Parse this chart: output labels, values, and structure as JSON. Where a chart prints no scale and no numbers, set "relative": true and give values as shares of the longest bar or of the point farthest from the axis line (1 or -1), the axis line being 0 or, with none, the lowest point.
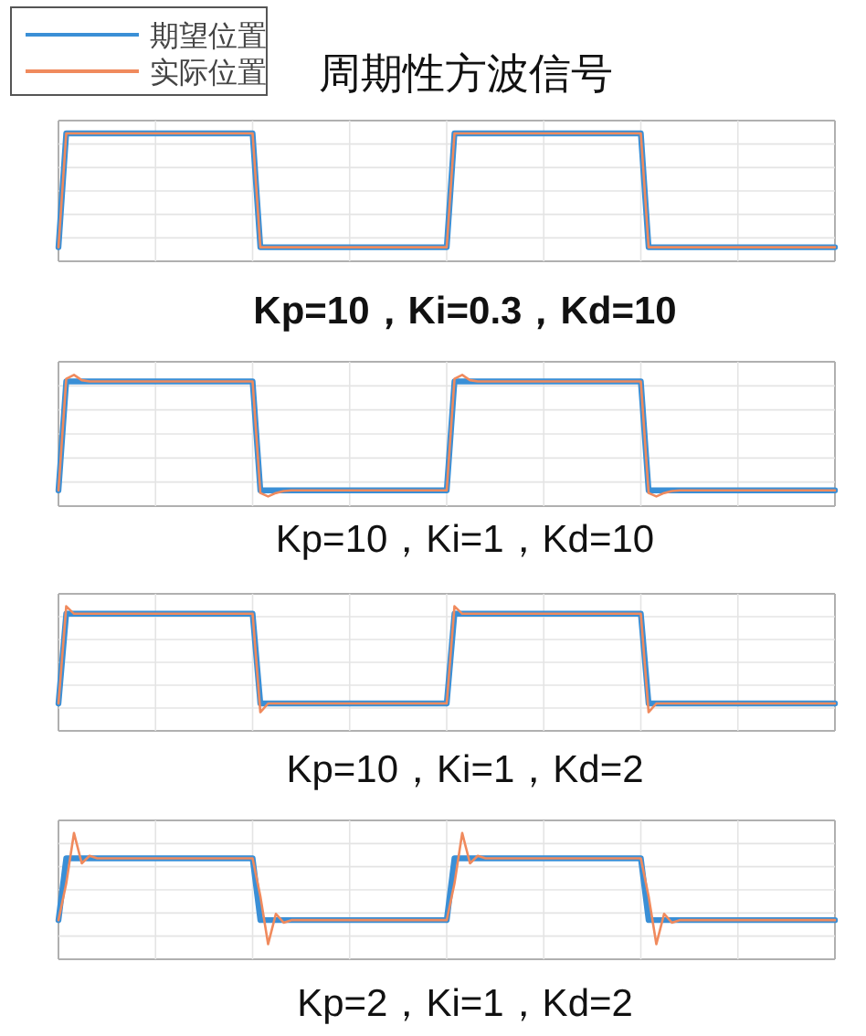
{
  "chart_data": [
    {
      "type": "line",
      "relative": true,
      "title": "周期性方波信号",
      "xlabel": "Kp=10，Ki=0.3，Kd=10",
      "grid": true,
      "legend": "top left",
      "categories": [
        null,
        null,
        null,
        null,
        null,
        null,
        null,
        null,
        null,
        null,
        null,
        null,
        null,
        null,
        null,
        null,
        null,
        null,
        null,
        null,
        null,
        null,
        null,
        null,
        null,
        null,
        null,
        null,
        null,
        null,
        null,
        null,
        null,
        null,
        null,
        null,
        null,
        null,
        null,
        null,
        null,
        null,
        null,
        null,
        null,
        null,
        null,
        null,
        null,
        null,
        null,
        null,
        null,
        null,
        null,
        null,
        null,
        null,
        null,
        null,
        null,
        null,
        null,
        null,
        null,
        null,
        null,
        null,
        null,
        null,
        null,
        null,
        null,
        null,
        null,
        null,
        null,
        null,
        null,
        null,
        null,
        null,
        null,
        null,
        null,
        null,
        null,
        null,
        null,
        null,
        null,
        null,
        null,
        null,
        null,
        null,
        null,
        null,
        null,
        null,
        null
      ],
      "series": [
        {
          "name": "期望位置",
          "color": "#3a8fd6",
          "values": [
            0.11,
            1,
            1,
            1,
            1,
            1,
            1,
            1,
            1,
            1,
            1,
            1,
            1,
            1,
            1,
            1,
            1,
            1,
            1,
            1,
            1,
            1,
            1,
            1,
            1,
            1,
            0.11,
            0.11,
            0.11,
            0.11,
            0.11,
            0.11,
            0.11,
            0.11,
            0.11,
            0.11,
            0.11,
            0.11,
            0.11,
            0.11,
            0.11,
            0.11,
            0.11,
            0.11,
            0.11,
            0.11,
            0.11,
            0.11,
            0.11,
            0.11,
            0.11,
            1,
            1,
            1,
            1,
            1,
            1,
            1,
            1,
            1,
            1,
            1,
            1,
            1,
            1,
            1,
            1,
            1,
            1,
            1,
            1,
            1,
            1,
            1,
            1,
            1,
            0.11,
            0.11,
            0.11,
            0.11,
            0.11,
            0.11,
            0.11,
            0.11,
            0.11,
            0.11,
            0.11,
            0.11,
            0.11,
            0.11,
            0.11,
            0.11,
            0.11,
            0.11,
            0.11,
            0.11,
            0.11,
            0.11,
            0.11,
            0.11,
            0.11
          ]
        },
        {
          "name": "实际位置",
          "color": "#f08a5d",
          "values": [
            0.11,
            1,
            1,
            1,
            1,
            1,
            1,
            1,
            1,
            1,
            1,
            1,
            1,
            1,
            1,
            1,
            1,
            1,
            1,
            1,
            1,
            1,
            1,
            1,
            1,
            1,
            0.11,
            0.11,
            0.11,
            0.11,
            0.11,
            0.11,
            0.11,
            0.11,
            0.11,
            0.11,
            0.11,
            0.11,
            0.11,
            0.11,
            0.11,
            0.11,
            0.11,
            0.11,
            0.11,
            0.11,
            0.11,
            0.11,
            0.11,
            0.11,
            0.11,
            1,
            1,
            1,
            1,
            1,
            1,
            1,
            1,
            1,
            1,
            1,
            1,
            1,
            1,
            1,
            1,
            1,
            1,
            1,
            1,
            1,
            1,
            1,
            1,
            1,
            0.11,
            0.11,
            0.11,
            0.11,
            0.11,
            0.11,
            0.11,
            0.11,
            0.11,
            0.11,
            0.11,
            0.11,
            0.11,
            0.11,
            0.11,
            0.11,
            0.11,
            0.11,
            0.11,
            0.11,
            0.11,
            0.11,
            0.11,
            0.11,
            0.11
          ]
        }
      ]
    },
    {
      "type": "line",
      "relative": true,
      "xlabel": "Kp=10，Ki=1，Kd=10",
      "grid": true,
      "categories": [
        null,
        null,
        null,
        null,
        null,
        null,
        null,
        null,
        null,
        null,
        null,
        null,
        null,
        null,
        null,
        null,
        null,
        null,
        null,
        null,
        null,
        null,
        null,
        null,
        null,
        null,
        null,
        null,
        null,
        null,
        null,
        null,
        null,
        null,
        null,
        null,
        null,
        null,
        null,
        null,
        null,
        null,
        null,
        null,
        null,
        null,
        null,
        null,
        null,
        null,
        null,
        null,
        null,
        null,
        null,
        null,
        null,
        null,
        null,
        null,
        null,
        null,
        null,
        null,
        null,
        null,
        null,
        null,
        null,
        null,
        null,
        null,
        null,
        null,
        null,
        null,
        null,
        null,
        null,
        null,
        null,
        null,
        null,
        null,
        null,
        null,
        null,
        null,
        null,
        null,
        null,
        null,
        null,
        null,
        null,
        null,
        null,
        null,
        null,
        null,
        null
      ],
      "series": [
        {
          "color": "#3a8fd6",
          "values": [
            0.12,
            0.95,
            0.95,
            0.95,
            0.95,
            0.95,
            0.95,
            0.95,
            0.95,
            0.95,
            0.95,
            0.95,
            0.95,
            0.95,
            0.95,
            0.95,
            0.95,
            0.95,
            0.95,
            0.95,
            0.95,
            0.95,
            0.95,
            0.95,
            0.95,
            0.95,
            0.12,
            0.12,
            0.12,
            0.12,
            0.12,
            0.12,
            0.12,
            0.12,
            0.12,
            0.12,
            0.12,
            0.12,
            0.12,
            0.12,
            0.12,
            0.12,
            0.12,
            0.12,
            0.12,
            0.12,
            0.12,
            0.12,
            0.12,
            0.12,
            0.12,
            0.95,
            0.95,
            0.95,
            0.95,
            0.95,
            0.95,
            0.95,
            0.95,
            0.95,
            0.95,
            0.95,
            0.95,
            0.95,
            0.95,
            0.95,
            0.95,
            0.95,
            0.95,
            0.95,
            0.95,
            0.95,
            0.95,
            0.95,
            0.95,
            0.95,
            0.12,
            0.12,
            0.12,
            0.12,
            0.12,
            0.12,
            0.12,
            0.12,
            0.12,
            0.12,
            0.12,
            0.12,
            0.12,
            0.12,
            0.12,
            0.12,
            0.12,
            0.12,
            0.12,
            0.12,
            0.12,
            0.12,
            0.12,
            0.12,
            0.12
          ]
        },
        {
          "color": "#f08a5d",
          "values": [
            0.12,
            0.97,
            1,
            0.96,
            0.95,
            0.95,
            0.95,
            0.95,
            0.95,
            0.95,
            0.95,
            0.95,
            0.95,
            0.95,
            0.95,
            0.95,
            0.95,
            0.95,
            0.95,
            0.95,
            0.95,
            0.95,
            0.95,
            0.95,
            0.95,
            0.95,
            0.1,
            0.074,
            0.1,
            0.115,
            0.12,
            0.12,
            0.12,
            0.12,
            0.12,
            0.12,
            0.12,
            0.12,
            0.12,
            0.12,
            0.12,
            0.12,
            0.12,
            0.12,
            0.12,
            0.12,
            0.12,
            0.12,
            0.12,
            0.12,
            0.12,
            0.97,
            1,
            0.96,
            0.95,
            0.95,
            0.95,
            0.95,
            0.95,
            0.95,
            0.95,
            0.95,
            0.95,
            0.95,
            0.95,
            0.95,
            0.95,
            0.95,
            0.95,
            0.95,
            0.95,
            0.95,
            0.95,
            0.95,
            0.95,
            0.95,
            0.1,
            0.074,
            0.1,
            0.115,
            0.12,
            0.12,
            0.12,
            0.12,
            0.12,
            0.12,
            0.12,
            0.12,
            0.12,
            0.12,
            0.12,
            0.12,
            0.12,
            0.12,
            0.12,
            0.12,
            0.12,
            0.12,
            0.12,
            0.12,
            0.12
          ]
        }
      ]
    },
    {
      "type": "line",
      "relative": true,
      "xlabel": "Kp=10，Ki=1，Kd=2",
      "grid": true,
      "categories": [
        null,
        null,
        null,
        null,
        null,
        null,
        null,
        null,
        null,
        null,
        null,
        null,
        null,
        null,
        null,
        null,
        null,
        null,
        null,
        null,
        null,
        null,
        null,
        null,
        null,
        null,
        null,
        null,
        null,
        null,
        null,
        null,
        null,
        null,
        null,
        null,
        null,
        null,
        null,
        null,
        null,
        null,
        null,
        null,
        null,
        null,
        null,
        null,
        null,
        null,
        null,
        null,
        null,
        null,
        null,
        null,
        null,
        null,
        null,
        null,
        null,
        null,
        null,
        null,
        null,
        null,
        null,
        null,
        null,
        null,
        null,
        null,
        null,
        null,
        null,
        null,
        null,
        null,
        null,
        null,
        null,
        null,
        null,
        null,
        null,
        null,
        null,
        null,
        null,
        null,
        null,
        null,
        null,
        null,
        null,
        null,
        null,
        null,
        null,
        null,
        null
      ],
      "series": [
        {
          "color": "#3a8fd6",
          "values": [
            0.22,
            0.94,
            0.94,
            0.94,
            0.94,
            0.94,
            0.94,
            0.94,
            0.94,
            0.94,
            0.94,
            0.94,
            0.94,
            0.94,
            0.94,
            0.94,
            0.94,
            0.94,
            0.94,
            0.94,
            0.94,
            0.94,
            0.94,
            0.94,
            0.94,
            0.94,
            0.22,
            0.22,
            0.22,
            0.22,
            0.22,
            0.22,
            0.22,
            0.22,
            0.22,
            0.22,
            0.22,
            0.22,
            0.22,
            0.22,
            0.22,
            0.22,
            0.22,
            0.22,
            0.22,
            0.22,
            0.22,
            0.22,
            0.22,
            0.22,
            0.22,
            0.94,
            0.94,
            0.94,
            0.94,
            0.94,
            0.94,
            0.94,
            0.94,
            0.94,
            0.94,
            0.94,
            0.94,
            0.94,
            0.94,
            0.94,
            0.94,
            0.94,
            0.94,
            0.94,
            0.94,
            0.94,
            0.94,
            0.94,
            0.94,
            0.94,
            0.22,
            0.22,
            0.22,
            0.22,
            0.22,
            0.22,
            0.22,
            0.22,
            0.22,
            0.22,
            0.22,
            0.22,
            0.22,
            0.22,
            0.22,
            0.22,
            0.22,
            0.22,
            0.22,
            0.22,
            0.22,
            0.22,
            0.22,
            0.22,
            0.22
          ]
        },
        {
          "color": "#f08a5d",
          "values": [
            0.22,
            1,
            0.94,
            0.94,
            0.94,
            0.94,
            0.94,
            0.94,
            0.94,
            0.94,
            0.94,
            0.94,
            0.94,
            0.94,
            0.94,
            0.94,
            0.94,
            0.94,
            0.94,
            0.94,
            0.94,
            0.94,
            0.94,
            0.94,
            0.94,
            0.94,
            0.15,
            0.22,
            0.22,
            0.22,
            0.22,
            0.22,
            0.22,
            0.22,
            0.22,
            0.22,
            0.22,
            0.22,
            0.22,
            0.22,
            0.22,
            0.22,
            0.22,
            0.22,
            0.22,
            0.22,
            0.22,
            0.22,
            0.22,
            0.22,
            0.22,
            1,
            0.94,
            0.94,
            0.94,
            0.94,
            0.94,
            0.94,
            0.94,
            0.94,
            0.94,
            0.94,
            0.94,
            0.94,
            0.94,
            0.94,
            0.94,
            0.94,
            0.94,
            0.94,
            0.94,
            0.94,
            0.94,
            0.94,
            0.94,
            0.94,
            0.15,
            0.22,
            0.22,
            0.22,
            0.22,
            0.22,
            0.22,
            0.22,
            0.22,
            0.22,
            0.22,
            0.22,
            0.22,
            0.22,
            0.22,
            0.22,
            0.22,
            0.22,
            0.22,
            0.22,
            0.22,
            0.22,
            0.22,
            0.22,
            0.22
          ]
        }
      ]
    },
    {
      "type": "line",
      "relative": true,
      "xlabel": "Kp=2，Ki=1，Kd=2",
      "grid": true,
      "categories": [
        null,
        null,
        null,
        null,
        null,
        null,
        null,
        null,
        null,
        null,
        null,
        null,
        null,
        null,
        null,
        null,
        null,
        null,
        null,
        null,
        null,
        null,
        null,
        null,
        null,
        null,
        null,
        null,
        null,
        null,
        null,
        null,
        null,
        null,
        null,
        null,
        null,
        null,
        null,
        null,
        null,
        null,
        null,
        null,
        null,
        null,
        null,
        null,
        null,
        null,
        null,
        null,
        null,
        null,
        null,
        null,
        null,
        null,
        null,
        null,
        null,
        null,
        null,
        null,
        null,
        null,
        null,
        null,
        null,
        null,
        null,
        null,
        null,
        null,
        null,
        null,
        null,
        null,
        null,
        null,
        null,
        null,
        null,
        null,
        null,
        null,
        null,
        null,
        null,
        null,
        null,
        null,
        null,
        null,
        null,
        null,
        null,
        null,
        null,
        null,
        null
      ],
      "series": [
        {
          "color": "#3a8fd6",
          "values": [
            0.31,
            0.8,
            0.8,
            0.8,
            0.8,
            0.8,
            0.8,
            0.8,
            0.8,
            0.8,
            0.8,
            0.8,
            0.8,
            0.8,
            0.8,
            0.8,
            0.8,
            0.8,
            0.8,
            0.8,
            0.8,
            0.8,
            0.8,
            0.8,
            0.8,
            0.8,
            0.31,
            0.31,
            0.31,
            0.31,
            0.31,
            0.31,
            0.31,
            0.31,
            0.31,
            0.31,
            0.31,
            0.31,
            0.31,
            0.31,
            0.31,
            0.31,
            0.31,
            0.31,
            0.31,
            0.31,
            0.31,
            0.31,
            0.31,
            0.31,
            0.31,
            0.8,
            0.8,
            0.8,
            0.8,
            0.8,
            0.8,
            0.8,
            0.8,
            0.8,
            0.8,
            0.8,
            0.8,
            0.8,
            0.8,
            0.8,
            0.8,
            0.8,
            0.8,
            0.8,
            0.8,
            0.8,
            0.8,
            0.8,
            0.8,
            0.8,
            0.31,
            0.31,
            0.31,
            0.31,
            0.31,
            0.31,
            0.31,
            0.31,
            0.31,
            0.31,
            0.31,
            0.31,
            0.31,
            0.31,
            0.31,
            0.31,
            0.31,
            0.31,
            0.31,
            0.31,
            0.31,
            0.31,
            0.31,
            0.31,
            0.31
          ]
        },
        {
          "color": "#f08a5d",
          "values": [
            0.31,
            0.6,
            1,
            0.76,
            0.82,
            0.8,
            0.8,
            0.8,
            0.8,
            0.8,
            0.8,
            0.8,
            0.8,
            0.8,
            0.8,
            0.8,
            0.8,
            0.8,
            0.8,
            0.8,
            0.8,
            0.8,
            0.8,
            0.8,
            0.8,
            0.8,
            0.5,
            0.12,
            0.36,
            0.29,
            0.31,
            0.31,
            0.31,
            0.31,
            0.31,
            0.31,
            0.31,
            0.31,
            0.31,
            0.31,
            0.31,
            0.31,
            0.31,
            0.31,
            0.31,
            0.31,
            0.31,
            0.31,
            0.31,
            0.31,
            0.31,
            0.6,
            1,
            0.76,
            0.82,
            0.8,
            0.8,
            0.8,
            0.8,
            0.8,
            0.8,
            0.8,
            0.8,
            0.8,
            0.8,
            0.8,
            0.8,
            0.8,
            0.8,
            0.8,
            0.8,
            0.8,
            0.8,
            0.8,
            0.8,
            0.8,
            0.5,
            0.12,
            0.36,
            0.29,
            0.31,
            0.31,
            0.31,
            0.31,
            0.31,
            0.31,
            0.31,
            0.31,
            0.31,
            0.31,
            0.31,
            0.31,
            0.31,
            0.31,
            0.31,
            0.31,
            0.31,
            0.31,
            0.31,
            0.31,
            0.31
          ]
        }
      ]
    }
  ]
}
